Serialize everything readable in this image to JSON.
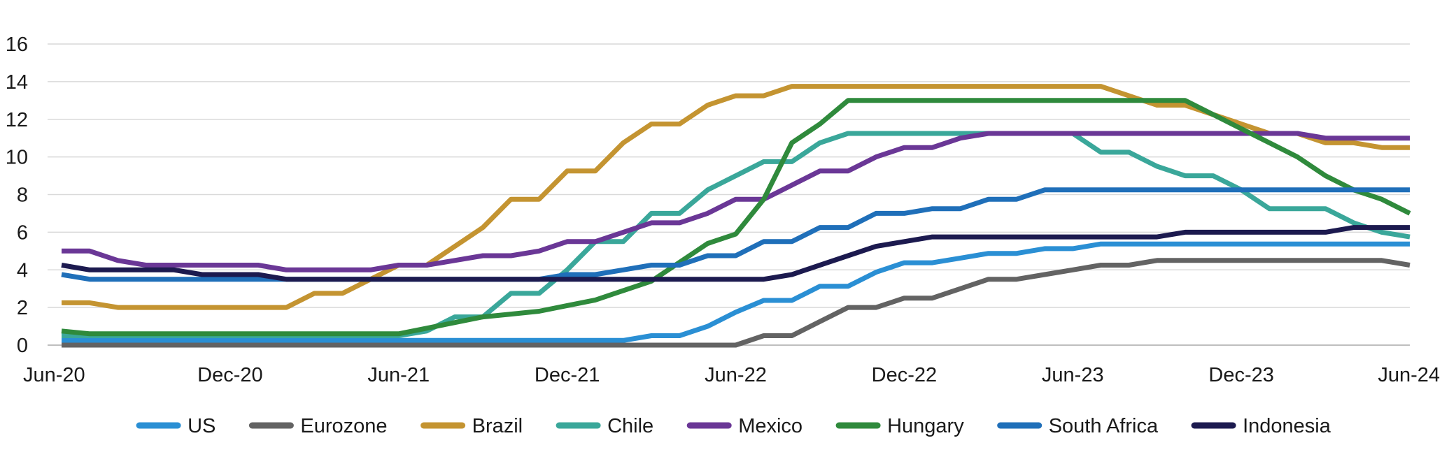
{
  "chart_data": {
    "type": "line",
    "title": "",
    "xlabel": "",
    "ylabel": "",
    "ylim": [
      0,
      16
    ],
    "yticks": [
      0,
      2,
      4,
      6,
      8,
      10,
      12,
      14,
      16
    ],
    "x": [
      "Jun-20",
      "Jul-20",
      "Aug-20",
      "Sep-20",
      "Oct-20",
      "Nov-20",
      "Dec-20",
      "Jan-21",
      "Feb-21",
      "Mar-21",
      "Apr-21",
      "May-21",
      "Jun-21",
      "Jul-21",
      "Aug-21",
      "Sep-21",
      "Oct-21",
      "Nov-21",
      "Dec-21",
      "Jan-22",
      "Feb-22",
      "Mar-22",
      "Apr-22",
      "May-22",
      "Jun-22",
      "Jul-22",
      "Aug-22",
      "Sep-22",
      "Oct-22",
      "Nov-22",
      "Dec-22",
      "Jan-23",
      "Feb-23",
      "Mar-23",
      "Apr-23",
      "May-23",
      "Jun-23",
      "Jul-23",
      "Aug-23",
      "Sep-23",
      "Oct-23",
      "Nov-23",
      "Dec-23",
      "Jan-24",
      "Feb-24",
      "Mar-24",
      "Apr-24",
      "May-24",
      "Jun-24"
    ],
    "xtick_labels": [
      "Jun-20",
      "Dec-20",
      "Jun-21",
      "Dec-21",
      "Jun-22",
      "Dec-22",
      "Jun-23",
      "Dec-23",
      "Jun-24"
    ],
    "xtick_index": [
      0,
      6,
      12,
      18,
      24,
      30,
      36,
      42,
      48
    ],
    "legend_position": "bottom",
    "grid": true,
    "series": [
      {
        "name": "US",
        "color": "#2a8fd4",
        "values": [
          0.25,
          0.25,
          0.25,
          0.25,
          0.25,
          0.25,
          0.25,
          0.25,
          0.25,
          0.25,
          0.25,
          0.25,
          0.25,
          0.25,
          0.25,
          0.25,
          0.25,
          0.25,
          0.25,
          0.25,
          0.25,
          0.5,
          0.5,
          1.0,
          1.75,
          2.375,
          2.375,
          3.125,
          3.125,
          3.875,
          4.375,
          4.375,
          4.625,
          4.875,
          4.875,
          5.125,
          5.125,
          5.375,
          5.375,
          5.375,
          5.375,
          5.375,
          5.375,
          5.375,
          5.375,
          5.375,
          5.375,
          5.375,
          5.375
        ]
      },
      {
        "name": "Eurozone",
        "color": "#636363",
        "values": [
          0,
          0,
          0,
          0,
          0,
          0,
          0,
          0,
          0,
          0,
          0,
          0,
          0,
          0,
          0,
          0,
          0,
          0,
          0,
          0,
          0,
          0,
          0,
          0,
          0,
          0.5,
          0.5,
          1.25,
          2.0,
          2.0,
          2.5,
          2.5,
          3.0,
          3.5,
          3.5,
          3.75,
          4.0,
          4.25,
          4.25,
          4.5,
          4.5,
          4.5,
          4.5,
          4.5,
          4.5,
          4.5,
          4.5,
          4.5,
          4.25
        ]
      },
      {
        "name": "Brazil",
        "color": "#c49431",
        "values": [
          2.25,
          2.25,
          2.0,
          2.0,
          2.0,
          2.0,
          2.0,
          2.0,
          2.0,
          2.75,
          2.75,
          3.5,
          4.25,
          4.25,
          5.25,
          6.25,
          7.75,
          7.75,
          9.25,
          9.25,
          10.75,
          11.75,
          11.75,
          12.75,
          13.25,
          13.25,
          13.75,
          13.75,
          13.75,
          13.75,
          13.75,
          13.75,
          13.75,
          13.75,
          13.75,
          13.75,
          13.75,
          13.75,
          13.25,
          12.75,
          12.75,
          12.25,
          11.75,
          11.25,
          11.25,
          10.75,
          10.75,
          10.5,
          10.5
        ]
      },
      {
        "name": "Chile",
        "color": "#3aa79a",
        "values": [
          0.5,
          0.5,
          0.5,
          0.5,
          0.5,
          0.5,
          0.5,
          0.5,
          0.5,
          0.5,
          0.5,
          0.5,
          0.5,
          0.75,
          1.5,
          1.5,
          2.75,
          2.75,
          4.0,
          5.5,
          5.5,
          7.0,
          7.0,
          8.25,
          9.0,
          9.75,
          9.75,
          10.75,
          11.25,
          11.25,
          11.25,
          11.25,
          11.25,
          11.25,
          11.25,
          11.25,
          11.25,
          10.25,
          10.25,
          9.5,
          9.0,
          9.0,
          8.25,
          7.25,
          7.25,
          7.25,
          6.5,
          6.0,
          5.75
        ]
      },
      {
        "name": "Mexico",
        "color": "#6a3796",
        "values": [
          5.0,
          5.0,
          4.5,
          4.25,
          4.25,
          4.25,
          4.25,
          4.25,
          4.0,
          4.0,
          4.0,
          4.0,
          4.25,
          4.25,
          4.5,
          4.75,
          4.75,
          5.0,
          5.5,
          5.5,
          6.0,
          6.5,
          6.5,
          7.0,
          7.75,
          7.75,
          8.5,
          9.25,
          9.25,
          10.0,
          10.5,
          10.5,
          11.0,
          11.25,
          11.25,
          11.25,
          11.25,
          11.25,
          11.25,
          11.25,
          11.25,
          11.25,
          11.25,
          11.25,
          11.25,
          11.0,
          11.0,
          11.0,
          11.0
        ]
      },
      {
        "name": "Hungary",
        "color": "#2f8a3c",
        "values": [
          0.75,
          0.6,
          0.6,
          0.6,
          0.6,
          0.6,
          0.6,
          0.6,
          0.6,
          0.6,
          0.6,
          0.6,
          0.6,
          0.9,
          1.2,
          1.5,
          1.65,
          1.8,
          2.1,
          2.4,
          2.9,
          3.4,
          4.4,
          5.4,
          5.9,
          7.75,
          10.75,
          11.75,
          13.0,
          13.0,
          13.0,
          13.0,
          13.0,
          13.0,
          13.0,
          13.0,
          13.0,
          13.0,
          13.0,
          13.0,
          13.0,
          12.25,
          11.5,
          10.75,
          10.0,
          9.0,
          8.25,
          7.75,
          7.0
        ]
      },
      {
        "name": "South Africa",
        "color": "#1f6fb9",
        "values": [
          3.75,
          3.5,
          3.5,
          3.5,
          3.5,
          3.5,
          3.5,
          3.5,
          3.5,
          3.5,
          3.5,
          3.5,
          3.5,
          3.5,
          3.5,
          3.5,
          3.5,
          3.5,
          3.75,
          3.75,
          4.0,
          4.25,
          4.25,
          4.75,
          4.75,
          5.5,
          5.5,
          6.25,
          6.25,
          7.0,
          7.0,
          7.25,
          7.25,
          7.75,
          7.75,
          8.25,
          8.25,
          8.25,
          8.25,
          8.25,
          8.25,
          8.25,
          8.25,
          8.25,
          8.25,
          8.25,
          8.25,
          8.25,
          8.25
        ]
      },
      {
        "name": "Indonesia",
        "color": "#1c1a4f",
        "values": [
          4.25,
          4.0,
          4.0,
          4.0,
          4.0,
          3.75,
          3.75,
          3.75,
          3.5,
          3.5,
          3.5,
          3.5,
          3.5,
          3.5,
          3.5,
          3.5,
          3.5,
          3.5,
          3.5,
          3.5,
          3.5,
          3.5,
          3.5,
          3.5,
          3.5,
          3.5,
          3.75,
          4.25,
          4.75,
          5.25,
          5.5,
          5.75,
          5.75,
          5.75,
          5.75,
          5.75,
          5.75,
          5.75,
          5.75,
          5.75,
          6.0,
          6.0,
          6.0,
          6.0,
          6.0,
          6.0,
          6.25,
          6.25,
          6.25
        ]
      }
    ]
  }
}
